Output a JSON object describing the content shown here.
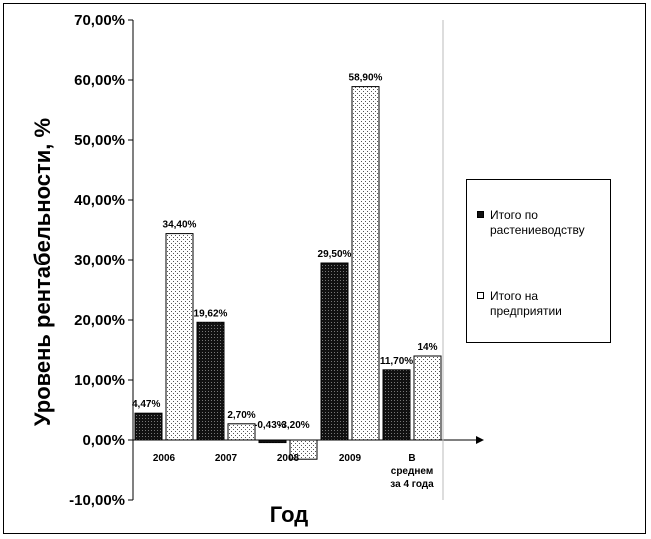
{
  "chart_data": {
    "type": "bar",
    "xlabel": "Год",
    "ylabel": "Уровень рентабельности, %",
    "ylim": [
      -10,
      70
    ],
    "yticks": [
      "-10,00%",
      "0,00%",
      "10,00%",
      "20,00%",
      "30,00%",
      "40,00%",
      "50,00%",
      "60,00%",
      "70,00%"
    ],
    "categories": [
      [
        "2006"
      ],
      [
        "2007"
      ],
      [
        "2008"
      ],
      [
        "2009"
      ],
      [
        "В",
        "среднем",
        "за 4 года"
      ]
    ],
    "series": [
      {
        "name": "Итого по растениеводству",
        "values": [
          4.47,
          19.62,
          -0.43,
          29.5,
          11.7
        ],
        "labels": [
          "4,47%",
          "19,62%",
          "-0,43%",
          "29,50%",
          "11,70%"
        ],
        "fill": "dark"
      },
      {
        "name": "Итого на предприятии",
        "values": [
          34.4,
          2.7,
          -3.2,
          58.9,
          14.0
        ],
        "labels": [
          "34,40%",
          "2,70%",
          "-3,20%",
          "58,90%",
          "14%"
        ],
        "fill": "light"
      }
    ],
    "legend_position": "right",
    "grid": false
  },
  "legend": {
    "items": [
      {
        "label": "Итого по растениеводству"
      },
      {
        "label": "Итого на предприятии"
      }
    ]
  }
}
